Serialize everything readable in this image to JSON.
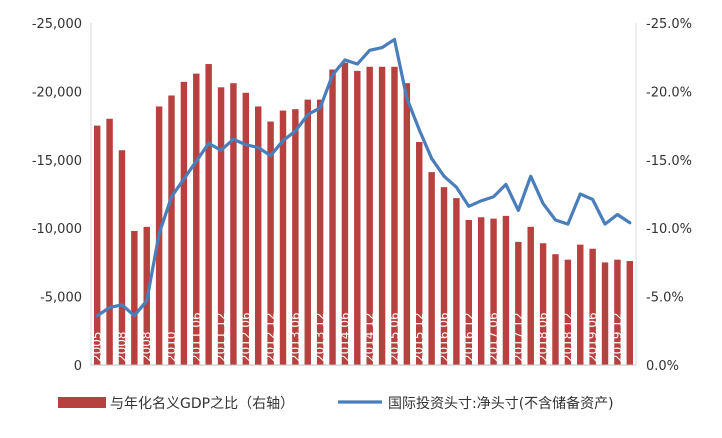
{
  "chart_data": {
    "type": "bar+line",
    "left_axis": {
      "ylim": [
        0,
        -25000
      ],
      "ticks": [
        "0",
        "-5,000",
        "-10,000",
        "-15,000",
        "-20,000",
        "-25,000"
      ]
    },
    "right_axis": {
      "ylim": [
        0,
        -25
      ],
      "ticks": [
        "0.0%",
        "-5.0%",
        "-10.0%",
        "-15.0%",
        "-20.0%",
        "-25.0%"
      ]
    },
    "x_tick_labels": [
      "2005",
      "2008",
      "2008",
      "2010",
      "2011 06",
      "2011 12",
      "2012 06",
      "2012 12",
      "2013 06",
      "2013 12",
      "2014 06",
      "2014 12",
      "2015 06",
      "2015 12",
      "2016 06",
      "2016 12",
      "2017 06",
      "2017 12",
      "2018 06",
      "2018 12",
      "2019 06",
      "2019 12"
    ],
    "series": [
      {
        "name": "与年化名义GDP之比（右轴）",
        "type": "bar",
        "axis": "right",
        "color": "#b7413e",
        "values": [
          -17.5,
          -18.0,
          -15.7,
          -9.8,
          -10.1,
          -18.9,
          -19.7,
          -20.7,
          -21.3,
          -22.0,
          -20.3,
          -20.6,
          -19.9,
          -18.9,
          -17.8,
          -18.6,
          -18.7,
          -19.4,
          -19.4,
          -21.6,
          -22.1,
          -21.5,
          -21.8,
          -21.8,
          -21.8,
          -20.6,
          -16.3,
          -14.1,
          -13.0,
          -12.2,
          -10.6,
          -10.8,
          -10.7,
          -10.9,
          -9.0,
          -10.1,
          -8.9,
          -8.1,
          -7.7,
          -8.8,
          -8.5,
          -7.5,
          -7.7,
          -7.6
        ]
      },
      {
        "name": "国际投资头寸:净头寸(不含储备资产)",
        "type": "line",
        "axis": "left",
        "color": "#4a7ebb",
        "values": [
          -3600,
          -4200,
          -4400,
          -3600,
          -4700,
          -9600,
          -12300,
          -13600,
          -14900,
          -16200,
          -15700,
          -16500,
          -16100,
          -15900,
          -15300,
          -16400,
          -17100,
          -18300,
          -18800,
          -21200,
          -22300,
          -22000,
          -23000,
          -23200,
          -23800,
          -19500,
          -17200,
          -15100,
          -13800,
          -13000,
          -11600,
          -12000,
          -12300,
          -13200,
          -11300,
          -13800,
          -11800,
          -10600,
          -10300,
          -12500,
          -12100,
          -10300,
          -11000,
          -10400
        ]
      }
    ]
  },
  "legend": {
    "bar_label": "与年化名义GDP之比（右轴）",
    "line_label": "国际投资头寸:净头寸(不含储备资产)"
  }
}
